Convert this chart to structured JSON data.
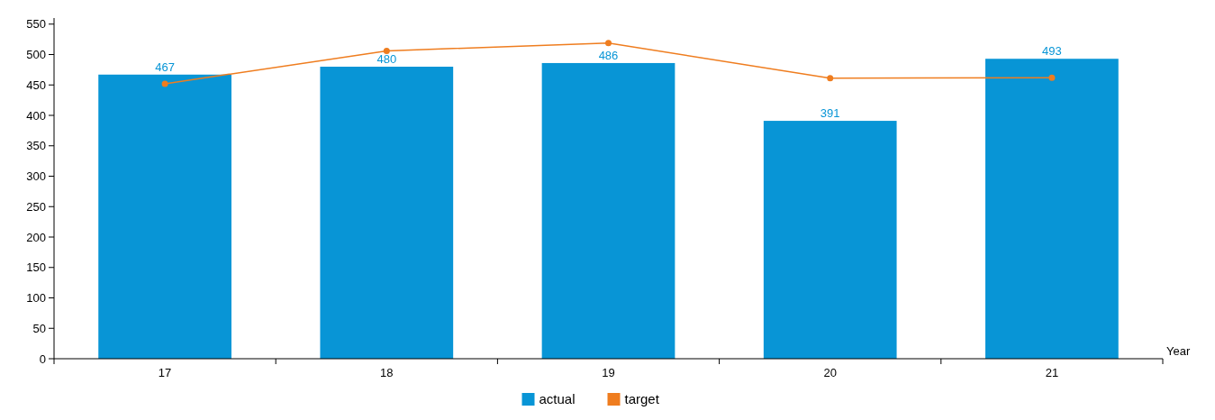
{
  "chart_data": {
    "type": "bar",
    "xlabel": "Year",
    "categories": [
      "17",
      "18",
      "19",
      "20",
      "21"
    ],
    "series": [
      {
        "name": "actual",
        "color": "#0895d6",
        "values": [
          467,
          480,
          486,
          391,
          493
        ],
        "value_labels": [
          "467",
          "480",
          "486",
          "391",
          "493"
        ]
      },
      {
        "name": "target",
        "type": "line",
        "color": "#ef7d1f",
        "values": [
          452,
          506,
          519,
          461,
          462
        ]
      }
    ],
    "ylim": [
      0,
      560
    ],
    "yticks": [
      0,
      50,
      100,
      150,
      200,
      250,
      300,
      350,
      400,
      450,
      500,
      550
    ],
    "legend": "bottom",
    "marker": "circle",
    "grid": false
  }
}
